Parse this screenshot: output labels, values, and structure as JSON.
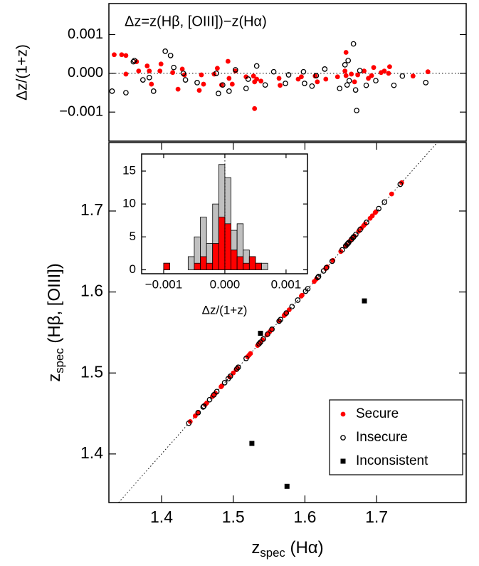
{
  "chart_data": [
    {
      "type": "scatter",
      "annotation": "Δz=z(Hβ, [OIII])−z(Hα)",
      "y_label": "Δz/(1+z)",
      "xlim": [
        1.435,
        1.771
      ],
      "ylim": [
        -0.00175,
        0.0018
      ],
      "yticks": [
        0.001,
        {
          "value": 0,
          "label": "0.000"
        },
        {
          "value": -0.001,
          "label": "−0.001"
        }
      ],
      "hline": 0,
      "series": [
        {
          "color": "#ff0000",
          "marker": "filled-circle",
          "x": [
            1.44,
            1.447,
            1.451,
            1.451,
            1.461,
            1.463,
            1.471,
            1.473,
            1.475,
            1.483,
            1.484,
            1.495,
            1.5,
            1.504,
            1.506,
            1.52,
            1.522,
            1.524,
            1.534,
            1.537,
            1.541,
            1.547,
            1.548,
            1.551,
            1.554,
            1.564,
            1.571,
            1.572,
            1.572,
            1.574,
            1.578,
            1.595,
            1.596,
            1.613,
            1.616,
            1.629,
            1.631,
            1.639,
            1.65,
            1.657,
            1.658,
            1.658,
            1.663,
            1.666,
            1.669,
            1.675,
            1.679,
            1.682,
            1.684,
            1.691,
            1.694,
            1.698,
            1.699,
            1.721,
            1.735
          ],
          "values": [
            0.00048,
            0.00048,
            0.00046,
            -2e-05,
            0.0003,
            6e-05,
            0.00019,
            6e-05,
            -0.00028,
            6e-05,
            0.00024,
            2e-05,
            -0.00041,
            0.00011,
            -4e-05,
            -0.00044,
            -4e-05,
            -0.00028,
            -2e-05,
            0.00013,
            -0.0003,
            0.00031,
            -0.00013,
            -0.00028,
            6e-05,
            -9e-05,
            -7e-05,
            -0.00091,
            -0.00022,
            -0.00015,
            -0.0002,
            -0.00013,
            -0.00031,
            -0.00015,
            -9e-05,
            -7e-05,
            -0.00022,
            -0.00015,
            -9e-05,
            6e-05,
            0.00054,
            -6e-05,
            -2e-05,
            -0.00022,
            -4e-05,
            6e-05,
            -0.00013,
            -6e-05,
            0.00015,
            2e-05,
            6e-05,
            0.0,
            0.00017,
            -7e-05,
            4e-05
          ]
        },
        {
          "color": "#000000",
          "marker": "open-circle",
          "x": [
            1.438,
            1.451,
            1.458,
            1.459,
            1.467,
            1.473,
            1.477,
            1.488,
            1.493,
            1.496,
            1.505,
            1.507,
            1.518,
            1.536,
            1.538,
            1.542,
            1.548,
            1.554,
            1.564,
            1.566,
            1.574,
            1.582,
            1.59,
            1.601,
            1.604,
            1.618,
            1.619,
            1.626,
            1.63,
            1.638,
            1.652,
            1.657,
            1.659,
            1.66,
            1.661,
            1.665,
            1.667,
            1.668,
            1.671,
            1.677,
            1.686,
            1.703,
            1.711,
            1.733
          ],
          "values": [
            -0.00046,
            -0.0005,
            0.0003,
            0.00033,
            -0.00017,
            -0.00011,
            -0.00046,
            0.00057,
            0.00046,
            0.00015,
            0.0,
            -0.00017,
            -0.00024,
            0.0,
            -0.00052,
            -0.0003,
            -0.00046,
            9e-05,
            -0.00039,
            -0.00015,
            0.00019,
            -0.0003,
            4e-05,
            -0.00026,
            -4e-05,
            4e-05,
            -0.00026,
            -0.00033,
            -6e-05,
            0.00011,
            -0.00039,
            0.00022,
            -0.0003,
            0.00033,
            -0.00019,
            0.00076,
            -0.00043,
            -0.00096,
            7e-05,
            -0.00031,
            -0.00019,
            -0.00031,
            -7e-05,
            -0.00024
          ]
        }
      ]
    },
    {
      "type": "scatter",
      "x_label": {
        "main": "z",
        "sub": "spec",
        "rest": " (Hα)"
      },
      "y_label": {
        "main": "z",
        "sub": "spec",
        "rest": " (Hβ, [OIII])"
      },
      "xlim": [
        1.3265,
        1.825
      ],
      "ylim": [
        1.34,
        1.7845
      ],
      "xticks": [
        1.4,
        1.5,
        1.6,
        1.7
      ],
      "yticks": [
        1.4,
        1.5,
        1.6,
        1.7
      ],
      "diagonal": true,
      "legend": "lower right",
      "series": [
        {
          "name": "Secure",
          "color": "#ff0000",
          "marker": "filled-circle",
          "x": [
            1.44,
            1.447,
            1.451,
            1.451,
            1.461,
            1.463,
            1.471,
            1.473,
            1.475,
            1.483,
            1.484,
            1.495,
            1.5,
            1.504,
            1.506,
            1.52,
            1.522,
            1.524,
            1.534,
            1.537,
            1.541,
            1.547,
            1.548,
            1.551,
            1.554,
            1.564,
            1.571,
            1.572,
            1.572,
            1.574,
            1.578,
            1.595,
            1.596,
            1.613,
            1.616,
            1.629,
            1.631,
            1.639,
            1.65,
            1.657,
            1.658,
            1.658,
            1.663,
            1.666,
            1.669,
            1.675,
            1.679,
            1.682,
            1.684,
            1.691,
            1.694,
            1.698,
            1.699,
            1.721,
            1.735
          ],
          "values": [
            1.44,
            1.447,
            1.451,
            1.451,
            1.461,
            1.463,
            1.471,
            1.473,
            1.475,
            1.483,
            1.484,
            1.495,
            1.5,
            1.504,
            1.506,
            1.52,
            1.522,
            1.524,
            1.534,
            1.537,
            1.541,
            1.547,
            1.548,
            1.551,
            1.554,
            1.564,
            1.571,
            1.572,
            1.572,
            1.574,
            1.578,
            1.595,
            1.596,
            1.613,
            1.616,
            1.629,
            1.631,
            1.639,
            1.65,
            1.657,
            1.658,
            1.658,
            1.663,
            1.666,
            1.669,
            1.675,
            1.679,
            1.682,
            1.684,
            1.691,
            1.694,
            1.698,
            1.699,
            1.721,
            1.735
          ]
        },
        {
          "name": "Insecure",
          "color": "#000000",
          "marker": "open-circle",
          "x": [
            1.438,
            1.451,
            1.458,
            1.459,
            1.467,
            1.473,
            1.477,
            1.488,
            1.493,
            1.496,
            1.505,
            1.507,
            1.518,
            1.536,
            1.538,
            1.542,
            1.548,
            1.554,
            1.564,
            1.566,
            1.574,
            1.582,
            1.59,
            1.601,
            1.604,
            1.618,
            1.619,
            1.626,
            1.63,
            1.638,
            1.652,
            1.657,
            1.659,
            1.66,
            1.661,
            1.665,
            1.667,
            1.668,
            1.671,
            1.677,
            1.686,
            1.703,
            1.711,
            1.733
          ],
          "values": [
            1.438,
            1.451,
            1.458,
            1.459,
            1.467,
            1.473,
            1.477,
            1.488,
            1.493,
            1.496,
            1.505,
            1.507,
            1.518,
            1.536,
            1.538,
            1.542,
            1.548,
            1.554,
            1.564,
            1.566,
            1.574,
            1.582,
            1.59,
            1.601,
            1.604,
            1.618,
            1.619,
            1.626,
            1.63,
            1.638,
            1.652,
            1.657,
            1.659,
            1.66,
            1.661,
            1.665,
            1.667,
            1.668,
            1.671,
            1.677,
            1.686,
            1.703,
            1.711,
            1.733
          ]
        },
        {
          "name": "Inconsistent",
          "color": "#000000",
          "marker": "square",
          "x": [
            1.526,
            1.538,
            1.575,
            1.683
          ],
          "values": [
            1.413,
            1.549,
            1.36,
            1.589
          ]
        }
      ]
    },
    {
      "type": "histogram",
      "x_label": "Δz/(1+z)",
      "xlim": [
        -0.00136,
        0.00135
      ],
      "ylim": [
        -0.6,
        17.6
      ],
      "xticks": [
        {
          "value": -0.001,
          "label": "−0.001"
        },
        {
          "value": 0,
          "label": "0.000"
        },
        0.001
      ],
      "yticks": [
        0,
        5,
        10,
        15
      ],
      "vline": 0,
      "bins": [
        -0.001,
        -0.0009,
        -0.0008,
        -0.0007,
        -0.0006,
        -0.0005,
        -0.0004,
        -0.0003,
        -0.0002,
        -0.0001,
        0,
        0.0001,
        0.0002,
        0.0003,
        0.0004,
        0.0005,
        0.0006,
        0.0007
      ],
      "series": [
        {
          "color": "#c0c0c0",
          "values": [
            1,
            0,
            0,
            0,
            2,
            5,
            8,
            4,
            10,
            16,
            14,
            6,
            7,
            3,
            2,
            1,
            1
          ]
        },
        {
          "color": "#ff0000",
          "values": [
            1,
            0,
            0,
            0,
            0,
            1,
            2,
            1,
            4,
            8,
            7,
            3,
            2,
            1,
            2,
            1,
            0
          ]
        }
      ]
    }
  ]
}
